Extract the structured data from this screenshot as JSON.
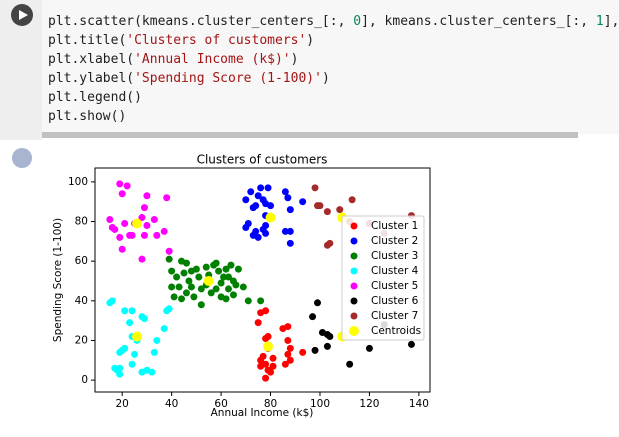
{
  "code": {
    "lines": [
      [
        "plt.scatter(kmeans.cluster_centers_[:, ",
        "0",
        "], kmeans.cluster_centers_[:, ",
        "1",
        "], s"
      ],
      [
        "plt.title(",
        "'Clusters of customers'",
        ")"
      ],
      [
        "plt.xlabel(",
        "'Annual Income (k$)'",
        ")"
      ],
      [
        "plt.ylabel(",
        "'Spending Score (1-100)'",
        ")"
      ],
      [
        "plt.legend()"
      ],
      [
        "plt.show()"
      ]
    ]
  },
  "chart_data": {
    "type": "scatter",
    "title": "Clusters of customers",
    "x_label": "Annual Income (k$)",
    "y_label": "Spending Score (1-100)",
    "xlim": [
      9,
      144.5
    ],
    "ylim": [
      -6,
      107
    ],
    "xticks": [
      20,
      40,
      60,
      80,
      100,
      120,
      140
    ],
    "yticks": [
      0,
      20,
      40,
      60,
      80,
      100
    ],
    "legend": "right",
    "series": [
      {
        "name": "Cluster 1",
        "color": "#ff0000",
        "x": [
          76,
          77,
          78,
          79,
          78,
          80,
          81,
          79,
          78,
          79,
          85,
          87,
          87,
          88,
          88,
          93,
          75,
          76,
          78,
          87,
          86,
          81,
          76
        ],
        "y": [
          10,
          12,
          8,
          5,
          1,
          4,
          11,
          16,
          21,
          22,
          26,
          27,
          13,
          10,
          16,
          14,
          29,
          34,
          35,
          20,
          8,
          7,
          7
        ]
      },
      {
        "name": "Cluster 2",
        "color": "#0000ff",
        "x": [
          70,
          72,
          73,
          74,
          75,
          76,
          77,
          78,
          78,
          79,
          80,
          86,
          87,
          88,
          88,
          88,
          86,
          78,
          73,
          74,
          70,
          75,
          77,
          71,
          93,
          78
        ],
        "y": [
          91,
          95,
          87,
          88,
          93,
          97,
          91,
          89,
          74,
          97,
          88,
          95,
          92,
          86,
          75,
          69,
          75,
          78,
          73,
          75,
          77,
          72,
          76,
          79,
          90,
          83
        ]
      },
      {
        "name": "Cluster 3",
        "color": "#008000",
        "x": [
          39,
          40,
          42,
          43,
          44,
          45,
          46,
          47,
          48,
          48,
          49,
          50,
          51,
          52,
          54,
          54,
          55,
          57,
          58,
          59,
          60,
          60,
          61,
          62,
          62,
          63,
          64,
          65,
          65,
          67,
          69,
          71,
          76,
          40,
          41,
          44,
          46,
          52,
          56,
          58,
          63,
          66
        ],
        "y": [
          61,
          55,
          52,
          47,
          60,
          54,
          59,
          50,
          55,
          47,
          42,
          56,
          52,
          46,
          57,
          48,
          53,
          58,
          46,
          55,
          49,
          42,
          52,
          56,
          41,
          46,
          58,
          50,
          43,
          56,
          47,
          40,
          40,
          47,
          42,
          41,
          44,
          38,
          44,
          59,
          52,
          48
        ]
      },
      {
        "name": "Cluster 4",
        "color": "#00ffff",
        "x": [
          15,
          16,
          17,
          18,
          19,
          19,
          20,
          21,
          23,
          24,
          24,
          25,
          28,
          29,
          28,
          30,
          32,
          33,
          34,
          37,
          38,
          39,
          24,
          26,
          19,
          21
        ],
        "y": [
          39,
          40,
          6,
          5,
          3,
          14,
          15,
          35,
          29,
          35,
          8,
          13,
          32,
          31,
          4,
          5,
          4,
          14,
          20,
          26,
          35,
          36,
          22,
          20,
          6,
          16
        ]
      },
      {
        "name": "Cluster 5",
        "color": "#ff00ff",
        "x": [
          15,
          16,
          17,
          19,
          19,
          20,
          20,
          21,
          22,
          23,
          24,
          25,
          28,
          28,
          29,
          29,
          30,
          33,
          34,
          38,
          39,
          37,
          30
        ],
        "y": [
          81,
          77,
          76,
          99,
          72,
          94,
          66,
          79,
          98,
          73,
          73,
          79,
          61,
          82,
          87,
          73,
          93,
          81,
          73,
          92,
          65,
          75,
          78
        ]
      },
      {
        "name": "Cluster 6",
        "color": "#000000",
        "x": [
          97,
          98,
          99,
          101,
          103,
          103,
          112,
          120,
          126,
          137,
          104
        ],
        "y": [
          32,
          15,
          39,
          24,
          17,
          23,
          8,
          16,
          28,
          18,
          22
        ]
      },
      {
        "name": "Cluster 7",
        "color": "#a52a2a",
        "x": [
          98,
          99,
          100,
          103,
          103,
          104,
          113,
          120,
          126,
          137,
          108,
          112
        ],
        "y": [
          97,
          88,
          88,
          85,
          68,
          69,
          91,
          79,
          74,
          83,
          86,
          80
        ]
      },
      {
        "name": "Centroids",
        "color": "#ffff00",
        "size": 10,
        "x": [
          26,
          26,
          55,
          79,
          80,
          109,
          109
        ],
        "y": [
          79,
          22,
          50,
          17,
          82,
          22,
          82
        ]
      }
    ]
  }
}
